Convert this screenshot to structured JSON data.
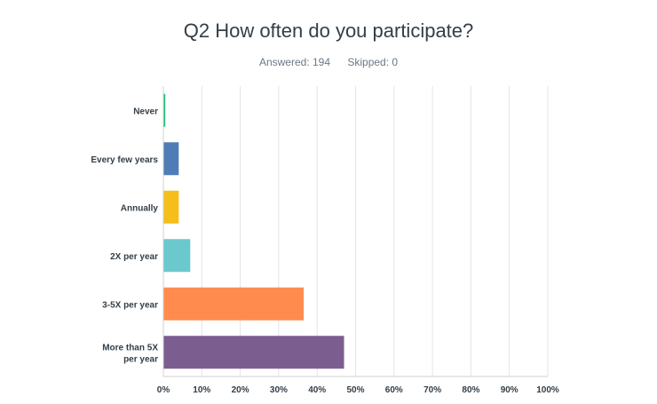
{
  "survey": {
    "question": "Q2 How often do you participate?",
    "answered_label": "Answered: 194",
    "skipped_label": "Skipped: 0"
  },
  "chart_data": {
    "type": "bar",
    "orientation": "horizontal",
    "title": "Q2 How often do you participate?",
    "categories": [
      [
        "Never"
      ],
      [
        "Every few years"
      ],
      [
        "Annually"
      ],
      [
        "2X per year"
      ],
      [
        "3-5X per year"
      ],
      [
        "More than 5X",
        "per year"
      ]
    ],
    "values": [
      0.5,
      4,
      4,
      7,
      36.5,
      47
    ],
    "colors": [
      "#1dc379",
      "#507cb6",
      "#f6be1a",
      "#6bc8cd",
      "#ff8b4f",
      "#7b5e8f"
    ],
    "xlim": [
      0,
      100
    ],
    "xticks": [
      "0%",
      "10%",
      "20%",
      "30%",
      "40%",
      "50%",
      "60%",
      "70%",
      "80%",
      "90%",
      "100%"
    ],
    "grid": true,
    "legend": "none"
  }
}
